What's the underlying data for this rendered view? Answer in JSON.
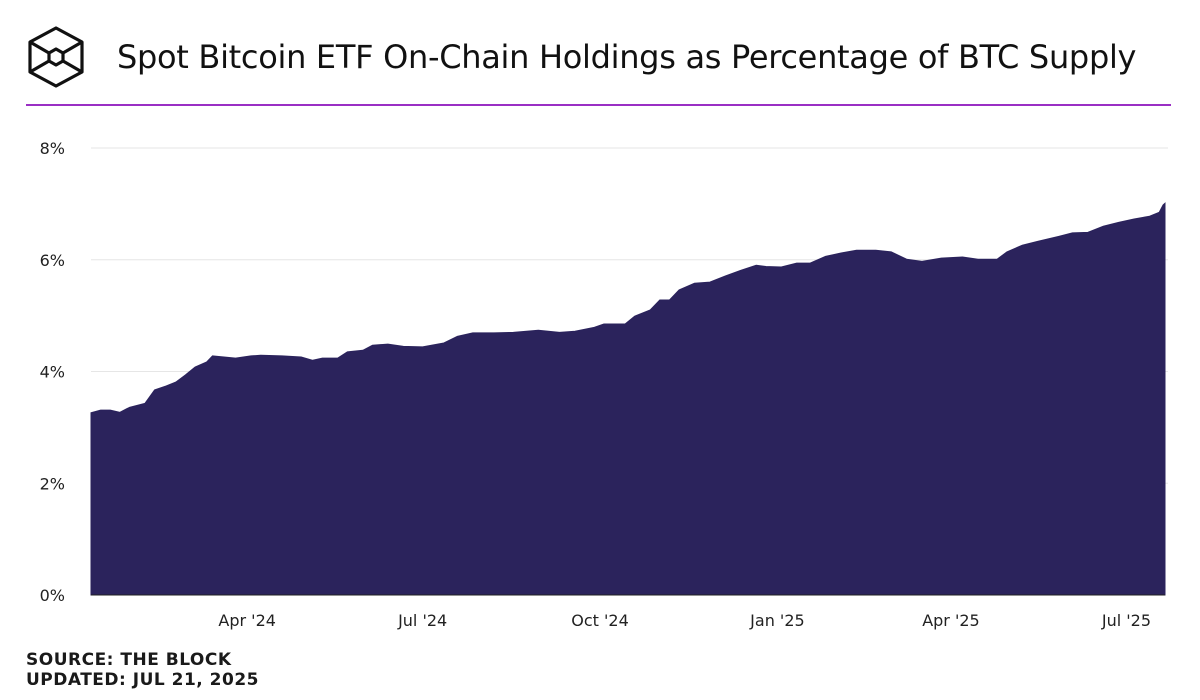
{
  "header": {
    "title": "Spot Bitcoin ETF On-Chain Holdings as Percentage of BTC Supply",
    "logo": "The Block cube logo",
    "accent_color": "#9a2fc4"
  },
  "footer": {
    "source": "SOURCE: THE BLOCK",
    "updated": "UPDATED: JUL 21, 2025"
  },
  "chart_data": {
    "type": "area",
    "title": "Spot Bitcoin ETF On-Chain Holdings as Percentage of BTC Supply",
    "xlabel": "",
    "ylabel": "",
    "ylim": [
      0,
      8
    ],
    "xlim": [
      "2024-01-11",
      "2025-07-21"
    ],
    "y_ticks": [
      "0%",
      "2%",
      "4%",
      "6%",
      "8%"
    ],
    "x_ticks": [
      {
        "date": "2024-04-01",
        "label": "Apr '24"
      },
      {
        "date": "2024-07-01",
        "label": "Jul '24"
      },
      {
        "date": "2024-10-01",
        "label": "Oct '24"
      },
      {
        "date": "2025-01-01",
        "label": "Jan '25"
      },
      {
        "date": "2025-04-01",
        "label": "Apr '25"
      },
      {
        "date": "2025-07-01",
        "label": "Jul '25"
      }
    ],
    "grid": true,
    "fill_color": "#2b235c",
    "points": [
      [
        "2024-01-11",
        3.26
      ],
      [
        "2024-01-16",
        3.31
      ],
      [
        "2024-01-21",
        3.31
      ],
      [
        "2024-01-26",
        3.27
      ],
      [
        "2024-01-31",
        3.36
      ],
      [
        "2024-02-08",
        3.43
      ],
      [
        "2024-02-13",
        3.67
      ],
      [
        "2024-02-19",
        3.74
      ],
      [
        "2024-02-24",
        3.81
      ],
      [
        "2024-02-29",
        3.94
      ],
      [
        "2024-03-05",
        4.08
      ],
      [
        "2024-03-11",
        4.17
      ],
      [
        "2024-03-14",
        4.28
      ],
      [
        "2024-03-20",
        4.26
      ],
      [
        "2024-03-26",
        4.24
      ],
      [
        "2024-04-03",
        4.28
      ],
      [
        "2024-04-08",
        4.29
      ],
      [
        "2024-04-19",
        4.28
      ],
      [
        "2024-04-29",
        4.26
      ],
      [
        "2024-05-05",
        4.2
      ],
      [
        "2024-05-10",
        4.24
      ],
      [
        "2024-05-18",
        4.24
      ],
      [
        "2024-05-23",
        4.35
      ],
      [
        "2024-05-31",
        4.38
      ],
      [
        "2024-06-05",
        4.47
      ],
      [
        "2024-06-13",
        4.49
      ],
      [
        "2024-06-21",
        4.45
      ],
      [
        "2024-07-01",
        4.44
      ],
      [
        "2024-07-12",
        4.51
      ],
      [
        "2024-07-19",
        4.63
      ],
      [
        "2024-07-27",
        4.69
      ],
      [
        "2024-08-07",
        4.69
      ],
      [
        "2024-08-17",
        4.7
      ],
      [
        "2024-08-30",
        4.74
      ],
      [
        "2024-09-10",
        4.7
      ],
      [
        "2024-09-18",
        4.72
      ],
      [
        "2024-09-28",
        4.79
      ],
      [
        "2024-10-03",
        4.85
      ],
      [
        "2024-10-14",
        4.85
      ],
      [
        "2024-10-19",
        4.99
      ],
      [
        "2024-10-27",
        5.1
      ],
      [
        "2024-11-01",
        5.28
      ],
      [
        "2024-11-06",
        5.28
      ],
      [
        "2024-11-11",
        5.46
      ],
      [
        "2024-11-19",
        5.58
      ],
      [
        "2024-11-27",
        5.6
      ],
      [
        "2024-12-05",
        5.71
      ],
      [
        "2024-12-13",
        5.81
      ],
      [
        "2024-12-21",
        5.9
      ],
      [
        "2024-12-26",
        5.88
      ],
      [
        "2025-01-03",
        5.87
      ],
      [
        "2025-01-11",
        5.94
      ],
      [
        "2025-01-18",
        5.94
      ],
      [
        "2025-01-26",
        6.06
      ],
      [
        "2025-02-03",
        6.12
      ],
      [
        "2025-02-11",
        6.17
      ],
      [
        "2025-02-21",
        6.17
      ],
      [
        "2025-03-01",
        6.14
      ],
      [
        "2025-03-09",
        6.01
      ],
      [
        "2025-03-17",
        5.97
      ],
      [
        "2025-03-27",
        6.03
      ],
      [
        "2025-04-07",
        6.05
      ],
      [
        "2025-04-15",
        6.01
      ],
      [
        "2025-04-25",
        6.01
      ],
      [
        "2025-04-30",
        6.14
      ],
      [
        "2025-05-08",
        6.26
      ],
      [
        "2025-05-16",
        6.33
      ],
      [
        "2025-05-27",
        6.42
      ],
      [
        "2025-06-03",
        6.48
      ],
      [
        "2025-06-11",
        6.49
      ],
      [
        "2025-06-19",
        6.6
      ],
      [
        "2025-06-27",
        6.67
      ],
      [
        "2025-07-05",
        6.73
      ],
      [
        "2025-07-13",
        6.78
      ],
      [
        "2025-07-18",
        6.85
      ],
      [
        "2025-07-20",
        6.98
      ],
      [
        "2025-07-21",
        7.01
      ]
    ]
  }
}
